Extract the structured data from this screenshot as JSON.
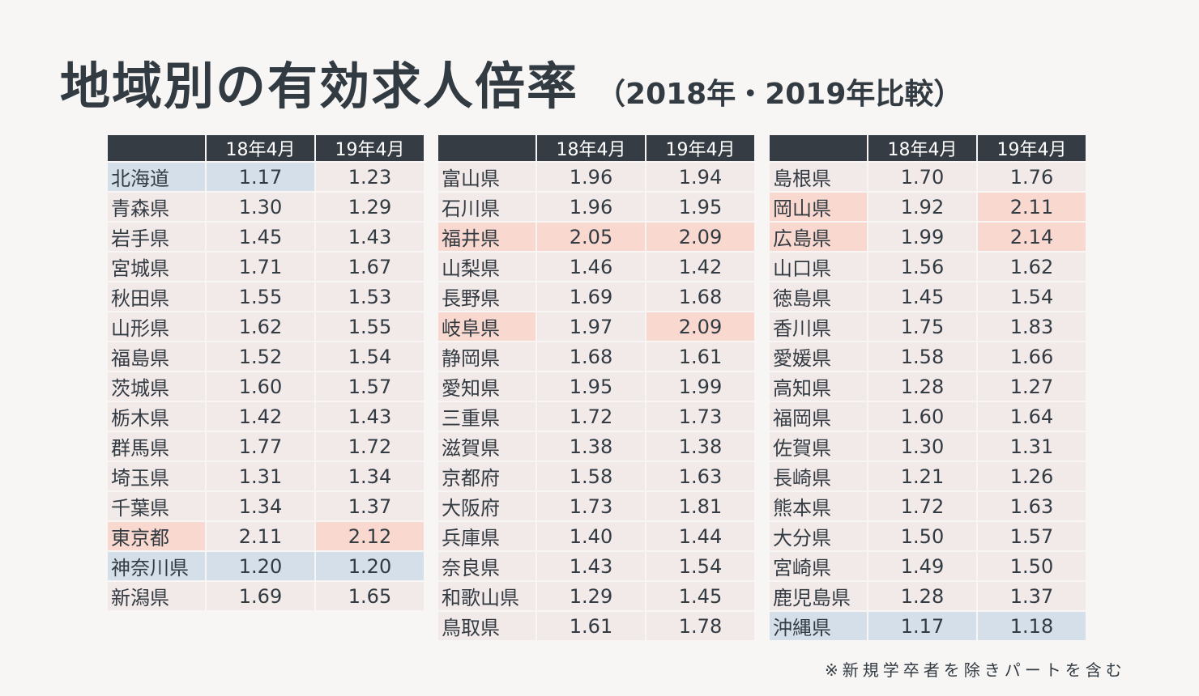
{
  "title": "地域別の有効求人倍率",
  "subtitle": "（2018年・2019年比較）",
  "headers": {
    "col1": "18年4月",
    "col2": "19年4月"
  },
  "note": "※新規学卒者を除きパートを含む",
  "colors": {
    "header_bg": "#363c43",
    "cell_bg": "#f2e9e9",
    "highlight_high": "#f8d8cf",
    "highlight_low": "#d5dfe9"
  },
  "tables": [
    {
      "rows": [
        {
          "name": "北海道",
          "v18": "1.17",
          "v19": "1.23",
          "h": [
            "lo",
            "lo",
            ""
          ]
        },
        {
          "name": "青森県",
          "v18": "1.30",
          "v19": "1.29",
          "h": [
            "",
            "",
            ""
          ]
        },
        {
          "name": "岩手県",
          "v18": "1.45",
          "v19": "1.43",
          "h": [
            "",
            "",
            ""
          ]
        },
        {
          "name": "宮城県",
          "v18": "1.71",
          "v19": "1.67",
          "h": [
            "",
            "",
            ""
          ]
        },
        {
          "name": "秋田県",
          "v18": "1.55",
          "v19": "1.53",
          "h": [
            "",
            "",
            ""
          ]
        },
        {
          "name": "山形県",
          "v18": "1.62",
          "v19": "1.55",
          "h": [
            "",
            "",
            ""
          ]
        },
        {
          "name": "福島県",
          "v18": "1.52",
          "v19": "1.54",
          "h": [
            "",
            "",
            ""
          ]
        },
        {
          "name": "茨城県",
          "v18": "1.60",
          "v19": "1.57",
          "h": [
            "",
            "",
            ""
          ]
        },
        {
          "name": "栃木県",
          "v18": "1.42",
          "v19": "1.43",
          "h": [
            "",
            "",
            ""
          ]
        },
        {
          "name": "群馬県",
          "v18": "1.77",
          "v19": "1.72",
          "h": [
            "",
            "",
            ""
          ]
        },
        {
          "name": "埼玉県",
          "v18": "1.31",
          "v19": "1.34",
          "h": [
            "",
            "",
            ""
          ]
        },
        {
          "name": "千葉県",
          "v18": "1.34",
          "v19": "1.37",
          "h": [
            "",
            "",
            ""
          ]
        },
        {
          "name": "東京都",
          "v18": "2.11",
          "v19": "2.12",
          "h": [
            "hi",
            "",
            "hi"
          ]
        },
        {
          "name": "神奈川県",
          "v18": "1.20",
          "v19": "1.20",
          "h": [
            "lo",
            "lo",
            "lo"
          ]
        },
        {
          "name": "新潟県",
          "v18": "1.69",
          "v19": "1.65",
          "h": [
            "",
            "",
            ""
          ]
        }
      ]
    },
    {
      "rows": [
        {
          "name": "富山県",
          "v18": "1.96",
          "v19": "1.94",
          "h": [
            "",
            "",
            ""
          ]
        },
        {
          "name": "石川県",
          "v18": "1.96",
          "v19": "1.95",
          "h": [
            "",
            "",
            ""
          ]
        },
        {
          "name": "福井県",
          "v18": "2.05",
          "v19": "2.09",
          "h": [
            "hi",
            "hi",
            "hi"
          ]
        },
        {
          "name": "山梨県",
          "v18": "1.46",
          "v19": "1.42",
          "h": [
            "",
            "",
            ""
          ]
        },
        {
          "name": "長野県",
          "v18": "1.69",
          "v19": "1.68",
          "h": [
            "",
            "",
            ""
          ]
        },
        {
          "name": "岐阜県",
          "v18": "1.97",
          "v19": "2.09",
          "h": [
            "hi",
            "",
            "hi"
          ]
        },
        {
          "name": "静岡県",
          "v18": "1.68",
          "v19": "1.61",
          "h": [
            "",
            "",
            ""
          ]
        },
        {
          "name": "愛知県",
          "v18": "1.95",
          "v19": "1.99",
          "h": [
            "",
            "",
            ""
          ]
        },
        {
          "name": "三重県",
          "v18": "1.72",
          "v19": "1.73",
          "h": [
            "",
            "",
            ""
          ]
        },
        {
          "name": "滋賀県",
          "v18": "1.38",
          "v19": "1.38",
          "h": [
            "",
            "",
            ""
          ]
        },
        {
          "name": "京都府",
          "v18": "1.58",
          "v19": "1.63",
          "h": [
            "",
            "",
            ""
          ]
        },
        {
          "name": "大阪府",
          "v18": "1.73",
          "v19": "1.81",
          "h": [
            "",
            "",
            ""
          ]
        },
        {
          "name": "兵庫県",
          "v18": "1.40",
          "v19": "1.44",
          "h": [
            "",
            "",
            ""
          ]
        },
        {
          "name": "奈良県",
          "v18": "1.43",
          "v19": "1.54",
          "h": [
            "",
            "",
            ""
          ]
        },
        {
          "name": "和歌山県",
          "v18": "1.29",
          "v19": "1.45",
          "h": [
            "",
            "",
            ""
          ]
        },
        {
          "name": "鳥取県",
          "v18": "1.61",
          "v19": "1.78",
          "h": [
            "",
            "",
            ""
          ]
        }
      ]
    },
    {
      "rows": [
        {
          "name": "島根県",
          "v18": "1.70",
          "v19": "1.76",
          "h": [
            "",
            "",
            ""
          ]
        },
        {
          "name": "岡山県",
          "v18": "1.92",
          "v19": "2.11",
          "h": [
            "hi",
            "",
            "hi"
          ]
        },
        {
          "name": "広島県",
          "v18": "1.99",
          "v19": "2.14",
          "h": [
            "hi",
            "",
            "hi"
          ]
        },
        {
          "name": "山口県",
          "v18": "1.56",
          "v19": "1.62",
          "h": [
            "",
            "",
            ""
          ]
        },
        {
          "name": "徳島県",
          "v18": "1.45",
          "v19": "1.54",
          "h": [
            "",
            "",
            ""
          ]
        },
        {
          "name": "香川県",
          "v18": "1.75",
          "v19": "1.83",
          "h": [
            "",
            "",
            ""
          ]
        },
        {
          "name": "愛媛県",
          "v18": "1.58",
          "v19": "1.66",
          "h": [
            "",
            "",
            ""
          ]
        },
        {
          "name": "高知県",
          "v18": "1.28",
          "v19": "1.27",
          "h": [
            "",
            "",
            ""
          ]
        },
        {
          "name": "福岡県",
          "v18": "1.60",
          "v19": "1.64",
          "h": [
            "",
            "",
            ""
          ]
        },
        {
          "name": "佐賀県",
          "v18": "1.30",
          "v19": "1.31",
          "h": [
            "",
            "",
            ""
          ]
        },
        {
          "name": "長崎県",
          "v18": "1.21",
          "v19": "1.26",
          "h": [
            "",
            "",
            ""
          ]
        },
        {
          "name": "熊本県",
          "v18": "1.72",
          "v19": "1.63",
          "h": [
            "",
            "",
            ""
          ]
        },
        {
          "name": "大分県",
          "v18": "1.50",
          "v19": "1.57",
          "h": [
            "",
            "",
            ""
          ]
        },
        {
          "name": "宮崎県",
          "v18": "1.49",
          "v19": "1.50",
          "h": [
            "",
            "",
            ""
          ]
        },
        {
          "name": "鹿児島県",
          "v18": "1.28",
          "v19": "1.37",
          "h": [
            "",
            "",
            ""
          ]
        },
        {
          "name": "沖縄県",
          "v18": "1.17",
          "v19": "1.18",
          "h": [
            "lo",
            "lo",
            "lo"
          ]
        }
      ]
    }
  ]
}
